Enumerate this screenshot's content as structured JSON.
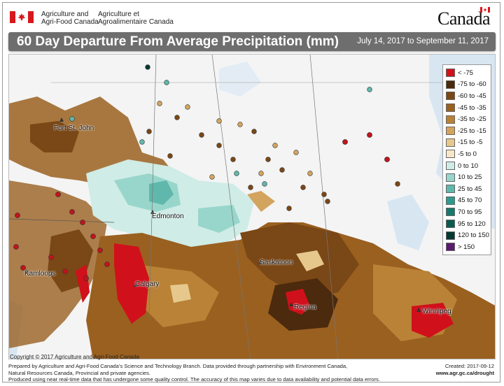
{
  "header": {
    "agency_en_line1": "Agriculture and",
    "agency_en_line2": "Agri-Food Canada",
    "agency_fr_line1": "Agriculture et",
    "agency_fr_line2": "Agroalimentaire Canada",
    "wordmark": "Canada",
    "flag_color": "#d8171c"
  },
  "titlebar": {
    "title": "60 Day Departure From Average Precipitation (mm)",
    "date_range": "July 14, 2017 to September 11, 2017"
  },
  "map": {
    "places": [
      "Fort St. John",
      "Edmonton",
      "Kamloops",
      "Calgary",
      "Saskatoon",
      "Regina",
      "Winnipeg"
    ]
  },
  "legend": {
    "items": [
      {
        "label": "< -75",
        "color": "#d0101b"
      },
      {
        "label": "-75 to -60",
        "color": "#4b2a0d"
      },
      {
        "label": "-60 to -45",
        "color": "#7a4716"
      },
      {
        "label": "-45 to -35",
        "color": "#9a6020"
      },
      {
        "label": "-35 to -25",
        "color": "#b98236"
      },
      {
        "label": "-25 to -15",
        "color": "#d3a45e"
      },
      {
        "label": "-15 to -5",
        "color": "#e6c88d"
      },
      {
        "label": "-5 to 0",
        "color": "#f6e7c8"
      },
      {
        "label": "0 to 10",
        "color": "#cfece6"
      },
      {
        "label": "10 to 25",
        "color": "#98d6cb"
      },
      {
        "label": "25 to 45",
        "color": "#5fb8ab"
      },
      {
        "label": "45 to 70",
        "color": "#2f9a8d"
      },
      {
        "label": "70 to 95",
        "color": "#17786c"
      },
      {
        "label": "95 to 120",
        "color": "#0b5a50"
      },
      {
        "label": "120 to 150",
        "color": "#053a33"
      },
      {
        "label": "> 150",
        "color": "#5a1a6e"
      }
    ]
  },
  "copyright": "Copyright © 2017 Agriculture and Agri-Food Canada",
  "footer": {
    "line1": "Prepared by Agriculture and Agri-Food Canada's Science and Technology Branch. Data provided through partnership with Environment Canada,",
    "line2": "Natural Resources Canada, Provincial and private agencies.",
    "line3": "Produced using near real-time data that has undergone some quality control. The accuracy of this map varies due to data availability and potential data errors.",
    "created": "Created: 2017-09-12",
    "site": "www.agr.gc.ca/drought"
  }
}
